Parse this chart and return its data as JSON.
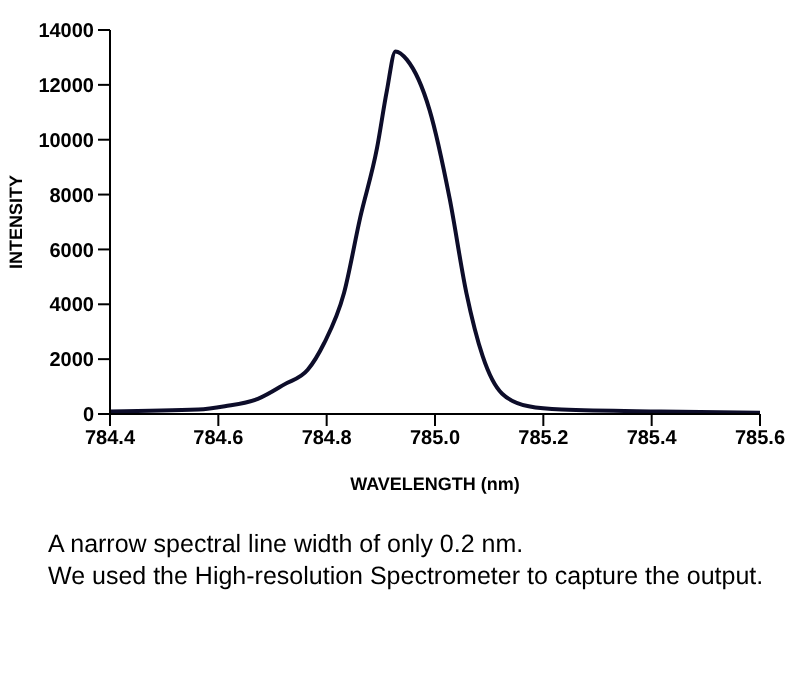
{
  "chart_data": {
    "type": "line",
    "xlabel": "WAVELENGTH (nm)",
    "ylabel": "INTENSITY",
    "x": [
      784.4,
      784.563,
      784.612,
      784.673,
      784.722,
      784.765,
      784.795,
      784.832,
      784.862,
      784.893,
      784.911,
      784.927,
      784.948,
      784.99,
      785.027,
      785.058,
      785.088,
      785.124,
      785.173,
      785.234,
      785.417,
      785.6
    ],
    "series": [
      {
        "color": "#0d0d2a",
        "values": [
          90,
          160,
          280,
          550,
          1080,
          1610,
          2570,
          4410,
          7170,
          9700,
          11770,
          13220,
          12920,
          11080,
          7860,
          4410,
          2110,
          740,
          280,
          160,
          90,
          50
        ]
      }
    ],
    "xlim": [
      784.4,
      785.6
    ],
    "xticks": [
      {
        "value": 784.4,
        "label": "784.4"
      },
      {
        "value": 784.6,
        "label": "784.6"
      },
      {
        "value": 784.8,
        "label": "784.8"
      },
      {
        "value": 785,
        "label": "785.0"
      },
      {
        "value": 785.2,
        "label": "785.2"
      },
      {
        "value": 785.4,
        "label": "785.4"
      },
      {
        "value": 785.6,
        "label": "785.6"
      }
    ],
    "ylim": [
      0,
      14000
    ],
    "yticks": [
      0,
      2000,
      4000,
      6000,
      8000,
      10000,
      12000,
      14000
    ],
    "grid": false,
    "legend": false,
    "marker": "none",
    "line_style": "solid",
    "annotations": [
      "A narrow spectral line width of only 0.2 nm.",
      "We used the High-resolution Spectrometer to capture the output."
    ]
  }
}
